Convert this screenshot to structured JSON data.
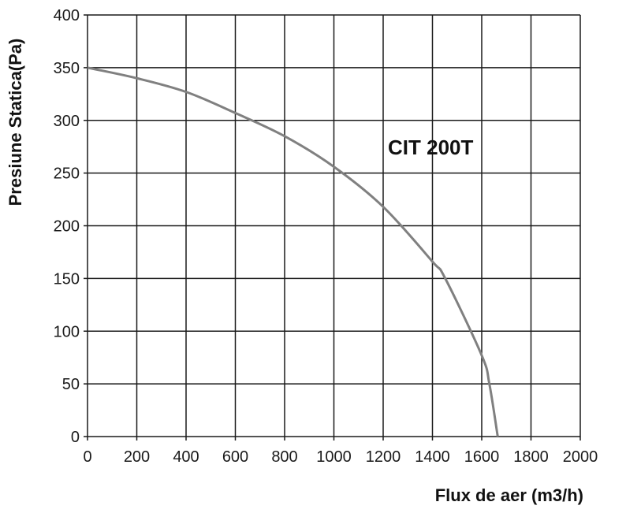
{
  "chart_data": {
    "type": "line",
    "title": "",
    "xlabel": "Flux de aer (m3/h)",
    "ylabel": "Presiune Statica(Pa)",
    "xlim": [
      0,
      2000
    ],
    "ylim": [
      0,
      400
    ],
    "xticks": [
      0,
      200,
      400,
      600,
      800,
      1000,
      1200,
      1400,
      1600,
      1800,
      2000
    ],
    "yticks": [
      0,
      50,
      100,
      150,
      200,
      250,
      300,
      350,
      400
    ],
    "grid": true,
    "annotation": "CIT 200T",
    "series": [
      {
        "name": "CIT 200T",
        "color": "#808080",
        "x": [
          0,
          200,
          400,
          600,
          800,
          1000,
          1200,
          1400,
          1452,
          1600,
          1631,
          1665
        ],
        "y": [
          350,
          340,
          327,
          307,
          285,
          256,
          218,
          166,
          150,
          77,
          50,
          0
        ]
      }
    ]
  }
}
